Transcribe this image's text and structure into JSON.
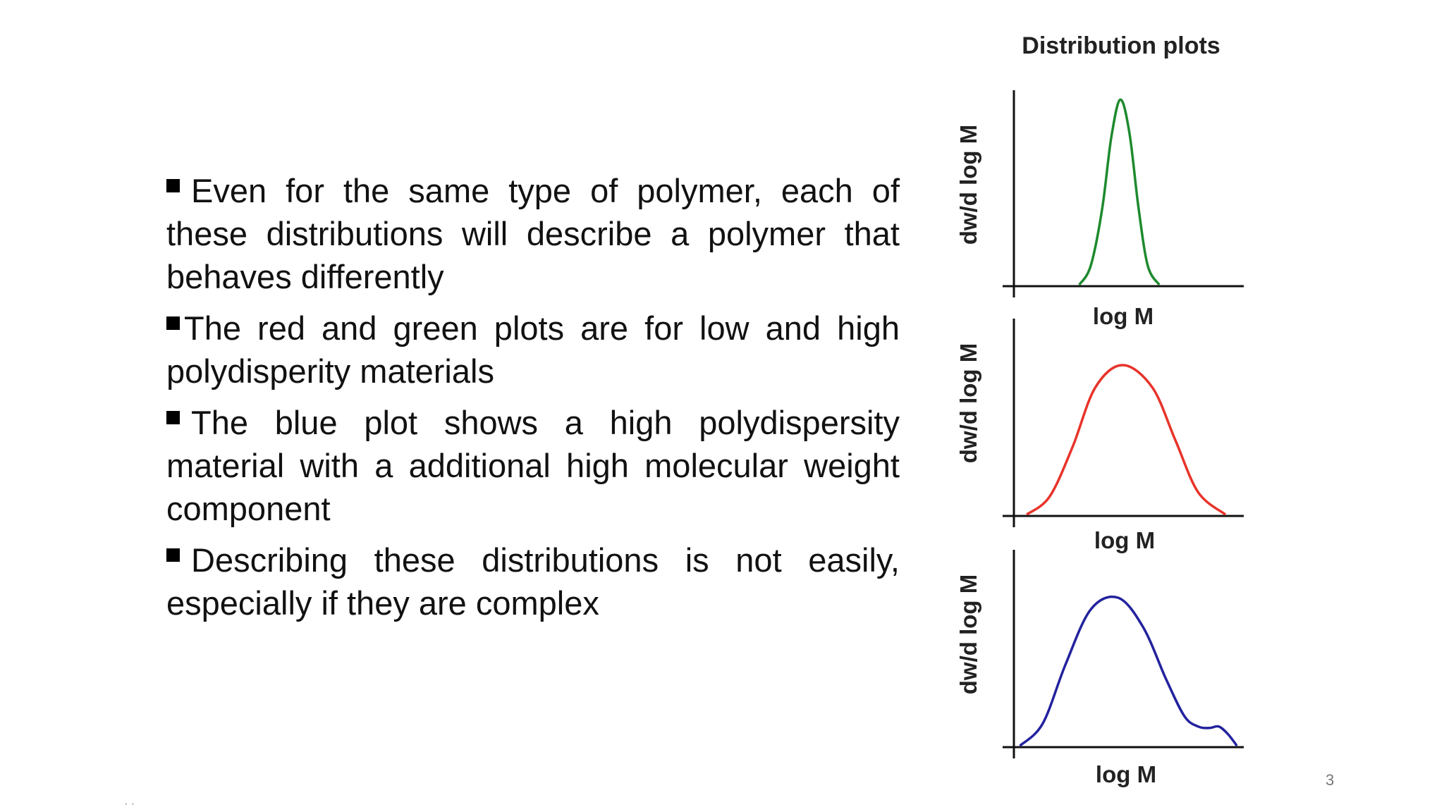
{
  "slide": {
    "page_number": "3",
    "corner_mark": "· ·"
  },
  "bullets": [
    {
      "text": "Even for the same type of polymer, each of these distributions will describe a polymer that behaves differently"
    },
    {
      "text": "The red and green plots are for low and high polydisperity materials"
    },
    {
      "text": "The blue plot shows a high polydispersity material with a additional high molecular weight component"
    },
    {
      "text": "Describing these distributions is not easily, especially if they are complex"
    }
  ],
  "figure": {
    "title": "Distribution plots"
  },
  "chart_data": [
    {
      "type": "line",
      "title": "",
      "xlabel": "log M",
      "ylabel": "dw/d log M",
      "color": "#1e8a2e",
      "series": [
        {
          "name": "",
          "x": [
            0.28,
            0.33,
            0.38,
            0.42,
            0.46,
            0.5,
            0.54,
            0.58,
            0.63
          ],
          "y": [
            0.0,
            0.1,
            0.4,
            0.78,
            0.98,
            0.8,
            0.4,
            0.1,
            0.0
          ]
        }
      ]
    },
    {
      "type": "line",
      "title": "",
      "xlabel": "log M",
      "ylabel": "dw/d log M",
      "color": "#e8332a",
      "series": [
        {
          "name": "",
          "x": [
            0.05,
            0.15,
            0.25,
            0.35,
            0.47,
            0.6,
            0.7,
            0.8,
            0.92
          ],
          "y": [
            0.0,
            0.12,
            0.45,
            0.85,
            1.0,
            0.85,
            0.5,
            0.15,
            0.0
          ]
        }
      ]
    },
    {
      "type": "line",
      "title": "",
      "xlabel": "log M",
      "ylabel": "dw/d log M",
      "color": "#22229e",
      "series": [
        {
          "name": "",
          "x": [
            0.02,
            0.12,
            0.22,
            0.33,
            0.45,
            0.56,
            0.66,
            0.74,
            0.8,
            0.85,
            0.89,
            0.93,
            0.97
          ],
          "y": [
            0.0,
            0.15,
            0.55,
            0.92,
            1.0,
            0.8,
            0.45,
            0.2,
            0.13,
            0.12,
            0.13,
            0.08,
            0.0
          ]
        }
      ]
    }
  ]
}
